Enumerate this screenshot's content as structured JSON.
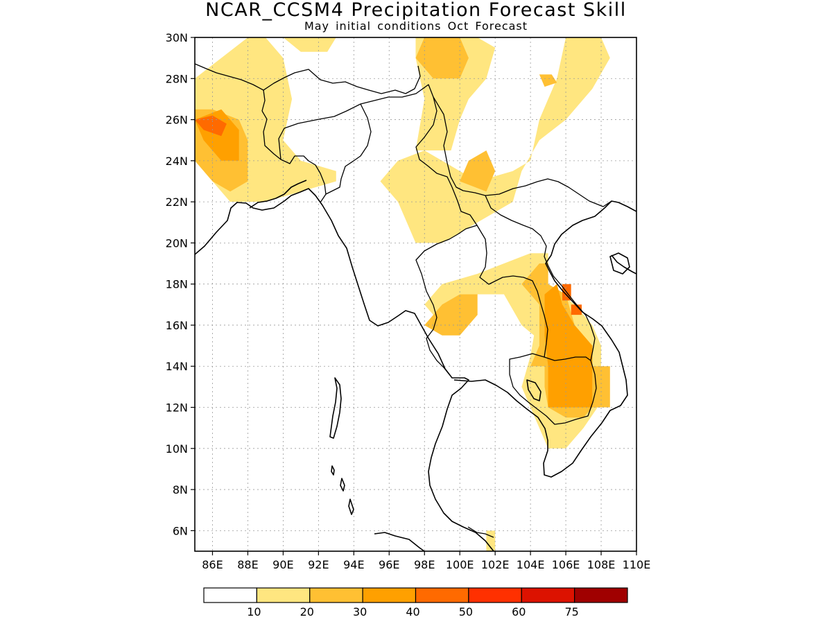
{
  "title": "NCAR_CCSM4 Precipitation Forecast Skill",
  "subtitle": "May initial conditions  Oct Forecast",
  "map": {
    "lon_range": [
      85,
      110
    ],
    "lat_range": [
      5,
      30
    ],
    "lat_ticks": [
      {
        "value": 30,
        "label": "30N"
      },
      {
        "value": 28,
        "label": "28N"
      },
      {
        "value": 26,
        "label": "26N"
      },
      {
        "value": 24,
        "label": "24N"
      },
      {
        "value": 22,
        "label": "22N"
      },
      {
        "value": 20,
        "label": "20N"
      },
      {
        "value": 18,
        "label": "18N"
      },
      {
        "value": 16,
        "label": "16N"
      },
      {
        "value": 14,
        "label": "14N"
      },
      {
        "value": 12,
        "label": "12N"
      },
      {
        "value": 10,
        "label": "10N"
      },
      {
        "value": 8,
        "label": "8N"
      },
      {
        "value": 6,
        "label": "6N"
      }
    ],
    "lon_ticks": [
      {
        "value": 86,
        "label": "86E"
      },
      {
        "value": 88,
        "label": "88E"
      },
      {
        "value": 90,
        "label": "90E"
      },
      {
        "value": 92,
        "label": "92E"
      },
      {
        "value": 94,
        "label": "94E"
      },
      {
        "value": 96,
        "label": "96E"
      },
      {
        "value": 98,
        "label": "98E"
      },
      {
        "value": 100,
        "label": "100E"
      },
      {
        "value": 102,
        "label": "102E"
      },
      {
        "value": 104,
        "label": "104E"
      },
      {
        "value": 106,
        "label": "106E"
      },
      {
        "value": 108,
        "label": "108E"
      },
      {
        "value": 110,
        "label": "110E"
      }
    ],
    "grid": "dotted"
  },
  "colorbar": {
    "colors": [
      "#ffffff",
      "#ffe680",
      "#ffc033",
      "#ffa000",
      "#ff6a00",
      "#ff3000",
      "#dc1200",
      "#a00000"
    ],
    "labels": [
      "10",
      "20",
      "30",
      "40",
      "50",
      "60",
      "75"
    ]
  },
  "skill_regions": [
    {
      "level": 1,
      "polygon": [
        [
          85,
          28
        ],
        [
          88,
          30
        ],
        [
          89,
          30
        ],
        [
          90,
          29
        ],
        [
          90.5,
          27
        ],
        [
          90,
          25
        ],
        [
          91,
          24
        ],
        [
          93,
          23.5
        ],
        [
          93,
          23
        ],
        [
          91,
          22.5
        ],
        [
          89,
          22
        ],
        [
          87,
          22
        ],
        [
          86,
          23
        ],
        [
          85,
          24
        ]
      ]
    },
    {
      "level": 1,
      "polygon": [
        [
          90,
          30
        ],
        [
          91,
          29.3
        ],
        [
          92.5,
          29.3
        ],
        [
          93,
          30
        ]
      ]
    },
    {
      "level": 1,
      "polygon": [
        [
          95.5,
          23
        ],
        [
          96.5,
          24
        ],
        [
          98,
          24.5
        ],
        [
          100,
          23.5
        ],
        [
          101,
          23
        ],
        [
          103,
          23.5
        ],
        [
          104,
          24
        ],
        [
          104.5,
          26
        ],
        [
          105,
          27
        ],
        [
          105.5,
          28
        ],
        [
          106,
          30
        ],
        [
          108,
          30
        ],
        [
          108.5,
          29
        ],
        [
          107.5,
          27.5
        ],
        [
          106,
          26
        ],
        [
          104.5,
          25
        ],
        [
          103.5,
          23.5
        ],
        [
          103,
          22
        ],
        [
          101,
          21
        ],
        [
          99,
          20
        ],
        [
          97.5,
          20
        ],
        [
          97,
          21
        ],
        [
          96.5,
          22
        ]
      ]
    },
    {
      "level": 1,
      "polygon": [
        [
          97.5,
          24.5
        ],
        [
          98,
          27
        ],
        [
          97.5,
          29
        ],
        [
          97.5,
          30
        ],
        [
          101,
          30
        ],
        [
          102,
          29.5
        ],
        [
          101.5,
          28
        ],
        [
          100.5,
          27
        ],
        [
          100,
          26
        ],
        [
          99.5,
          24.5
        ]
      ]
    },
    {
      "level": 1,
      "polygon": [
        [
          98,
          17
        ],
        [
          99,
          18
        ],
        [
          101,
          18.5
        ],
        [
          102.5,
          19
        ],
        [
          104,
          19.5
        ],
        [
          105,
          19.5
        ],
        [
          105,
          18
        ],
        [
          106.5,
          17
        ],
        [
          107.5,
          16
        ],
        [
          108,
          15
        ],
        [
          108,
          13
        ],
        [
          107.8,
          12
        ],
        [
          107,
          11
        ],
        [
          106,
          10
        ],
        [
          105,
          10
        ],
        [
          104.5,
          11
        ],
        [
          104,
          12
        ],
        [
          103.5,
          13
        ],
        [
          104,
          14.5
        ],
        [
          104.2,
          15.5
        ],
        [
          103.5,
          16
        ],
        [
          102.5,
          17.5
        ],
        [
          101,
          17.5
        ],
        [
          100,
          15.5
        ],
        [
          99,
          16
        ]
      ]
    },
    {
      "level": 1,
      "polygon": [
        [
          101.5,
          5
        ],
        [
          101.5,
          6
        ],
        [
          102,
          6
        ],
        [
          102,
          5
        ]
      ]
    },
    {
      "level": 2,
      "polygon": [
        [
          85,
          26.5
        ],
        [
          86,
          26.5
        ],
        [
          87.5,
          26
        ],
        [
          88,
          25
        ],
        [
          88,
          23
        ],
        [
          87,
          22.5
        ],
        [
          86,
          23
        ],
        [
          85,
          24
        ]
      ]
    },
    {
      "level": 2,
      "polygon": [
        [
          97.5,
          29
        ],
        [
          98,
          30
        ],
        [
          100,
          30
        ],
        [
          100.5,
          29
        ],
        [
          100,
          28
        ],
        [
          98.5,
          28
        ]
      ]
    },
    {
      "level": 2,
      "polygon": [
        [
          100,
          23
        ],
        [
          100.5,
          24
        ],
        [
          101.5,
          24.5
        ],
        [
          102,
          23.5
        ],
        [
          101.5,
          22.5
        ]
      ]
    },
    {
      "level": 2,
      "polygon": [
        [
          98,
          16
        ],
        [
          99,
          17
        ],
        [
          100,
          17.5
        ],
        [
          101,
          17.5
        ],
        [
          101,
          16.5
        ],
        [
          100,
          15.5
        ],
        [
          99,
          15.5
        ]
      ]
    },
    {
      "level": 2,
      "polygon": [
        [
          103.5,
          18
        ],
        [
          104.5,
          19
        ],
        [
          105,
          19
        ],
        [
          105,
          18
        ],
        [
          106,
          17.5
        ],
        [
          106.5,
          16
        ],
        [
          107.5,
          15
        ],
        [
          107.5,
          13
        ],
        [
          107.5,
          12
        ],
        [
          107,
          11.5
        ],
        [
          106,
          11.5
        ],
        [
          105,
          12
        ],
        [
          104.8,
          13
        ],
        [
          104.8,
          14
        ],
        [
          104,
          14
        ],
        [
          104.5,
          15
        ],
        [
          104.5,
          17
        ]
      ]
    },
    {
      "level": 2,
      "polygon": [
        [
          107.5,
          14
        ],
        [
          108.5,
          14
        ],
        [
          108.5,
          12
        ],
        [
          107.5,
          12
        ]
      ]
    },
    {
      "level": 2,
      "polygon": [
        [
          104.5,
          28.2
        ],
        [
          105.2,
          28.2
        ],
        [
          105.5,
          27.8
        ],
        [
          104.8,
          27.6
        ]
      ]
    },
    {
      "level": 3,
      "polygon": [
        [
          85,
          26
        ],
        [
          86.5,
          26.5
        ],
        [
          87.5,
          25.5
        ],
        [
          87.5,
          24
        ],
        [
          86.5,
          24
        ],
        [
          85.5,
          25
        ]
      ]
    },
    {
      "level": 3,
      "polygon": [
        [
          104.8,
          17.5
        ],
        [
          105.5,
          18
        ],
        [
          105.8,
          17
        ],
        [
          106.5,
          16
        ],
        [
          107.5,
          15
        ],
        [
          107.5,
          12
        ],
        [
          105,
          12
        ],
        [
          105,
          14
        ],
        [
          104.8,
          15.5
        ]
      ]
    },
    {
      "level": 4,
      "polygon": [
        [
          85,
          26
        ],
        [
          86,
          26.2
        ],
        [
          86.8,
          25.8
        ],
        [
          86.5,
          25.2
        ],
        [
          85.5,
          25.5
        ]
      ]
    },
    {
      "level": 4,
      "polygon": [
        [
          105.8,
          18
        ],
        [
          106.3,
          18
        ],
        [
          106.3,
          17.2
        ],
        [
          105.8,
          17.2
        ]
      ]
    },
    {
      "level": 4,
      "polygon": [
        [
          106.3,
          17
        ],
        [
          106.9,
          17
        ],
        [
          106.9,
          16.5
        ],
        [
          106.3,
          16.5
        ]
      ]
    }
  ]
}
